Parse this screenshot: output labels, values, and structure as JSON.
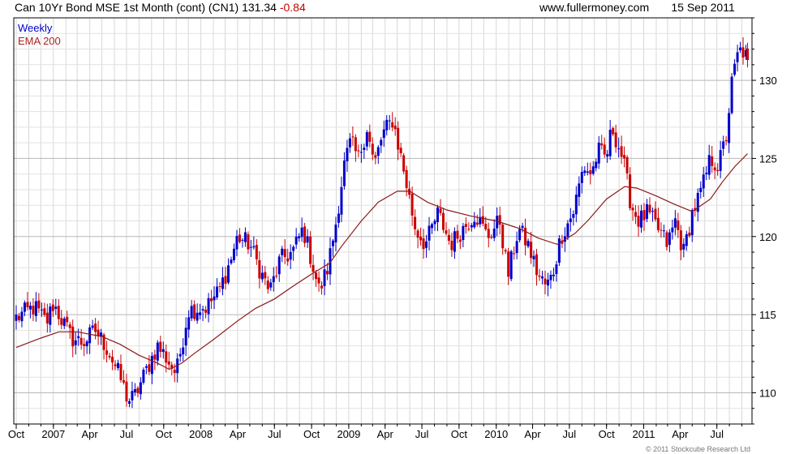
{
  "header": {
    "instrument": "Can 10Yr Bond MSE 1st Month (cont) (CN1) 131.34",
    "change": "-0.84",
    "site": "www.fullermoney.com",
    "date": "15 Sep 2011"
  },
  "legend": {
    "weekly": "Weekly",
    "ema": "EMA 200"
  },
  "copyright": "© 2011 Stockcube Research Ltd",
  "colors": {
    "up": "#0000cc",
    "down": "#cc0000",
    "ema": "#8b1a1a",
    "grid": "#d8d8d8"
  },
  "chart_data": {
    "type": "line",
    "chart_style": "candlestick",
    "frequency": "weekly",
    "y_axis_side": "right",
    "ylim": [
      108,
      134
    ],
    "yticks": [
      110,
      115,
      120,
      125,
      130
    ],
    "x_range": [
      "2006-09-25",
      "2011-09-26"
    ],
    "xticks": [
      {
        "date": "2006-10-01",
        "label": "Oct"
      },
      {
        "date": "2007-01-01",
        "label": "2007"
      },
      {
        "date": "2007-04-01",
        "label": "Apr"
      },
      {
        "date": "2007-07-01",
        "label": "Jul"
      },
      {
        "date": "2007-10-01",
        "label": "Oct"
      },
      {
        "date": "2008-01-01",
        "label": "2008"
      },
      {
        "date": "2008-04-01",
        "label": "Apr"
      },
      {
        "date": "2008-07-01",
        "label": "Jul"
      },
      {
        "date": "2008-10-01",
        "label": "Oct"
      },
      {
        "date": "2009-01-01",
        "label": "2009"
      },
      {
        "date": "2009-04-01",
        "label": "Apr"
      },
      {
        "date": "2009-07-01",
        "label": "Jul"
      },
      {
        "date": "2009-10-01",
        "label": "Oct"
      },
      {
        "date": "2010-01-01",
        "label": "2010"
      },
      {
        "date": "2010-04-01",
        "label": "Apr"
      },
      {
        "date": "2010-07-01",
        "label": "Jul"
      },
      {
        "date": "2010-10-01",
        "label": "Oct"
      },
      {
        "date": "2011-01-01",
        "label": "2011"
      },
      {
        "date": "2011-04-01",
        "label": "Apr"
      },
      {
        "date": "2011-07-01",
        "label": "Jul"
      }
    ],
    "price_path": [
      [
        "2006-10-01",
        114.8
      ],
      [
        "2006-11-15",
        115.5
      ],
      [
        "2006-12-15",
        114.5
      ],
      [
        "2007-01-01",
        115.7
      ],
      [
        "2007-02-15",
        113.5
      ],
      [
        "2007-03-15",
        113.2
      ],
      [
        "2007-04-15",
        114.0
      ],
      [
        "2007-05-15",
        112.8
      ],
      [
        "2007-06-15",
        111.0
      ],
      [
        "2007-07-05",
        109.5
      ],
      [
        "2007-07-20",
        109.7
      ],
      [
        "2007-08-15",
        111.2
      ],
      [
        "2007-09-15",
        113.0
      ],
      [
        "2007-10-01",
        112.5
      ],
      [
        "2007-11-01",
        111.2
      ],
      [
        "2007-12-01",
        115.3
      ],
      [
        "2008-01-15",
        115.5
      ],
      [
        "2008-02-15",
        116.5
      ],
      [
        "2008-03-15",
        118.5
      ],
      [
        "2008-04-01",
        120.0
      ],
      [
        "2008-05-01",
        119.5
      ],
      [
        "2008-06-01",
        117.5
      ],
      [
        "2008-06-20",
        116.5
      ],
      [
        "2008-07-15",
        118.5
      ],
      [
        "2008-08-15",
        119.0
      ],
      [
        "2008-09-10",
        120.5
      ],
      [
        "2008-10-01",
        118.5
      ],
      [
        "2008-10-20",
        116.5
      ],
      [
        "2008-11-10",
        118.0
      ],
      [
        "2008-12-01",
        121.0
      ],
      [
        "2008-12-20",
        124.5
      ],
      [
        "2009-01-05",
        126.0
      ],
      [
        "2009-01-25",
        125.0
      ],
      [
        "2009-02-15",
        127.0
      ],
      [
        "2009-03-05",
        124.5
      ],
      [
        "2009-03-25",
        126.5
      ],
      [
        "2009-04-20",
        127.5
      ],
      [
        "2009-05-15",
        124.5
      ],
      [
        "2009-06-15",
        120.5
      ],
      [
        "2009-07-10",
        119.5
      ],
      [
        "2009-08-10",
        121.5
      ],
      [
        "2009-09-10",
        119.5
      ],
      [
        "2009-10-10",
        120.5
      ],
      [
        "2009-11-10",
        121.5
      ],
      [
        "2009-12-10",
        120.0
      ],
      [
        "2010-01-10",
        121.0
      ],
      [
        "2010-01-30",
        117.5
      ],
      [
        "2010-02-25",
        120.5
      ],
      [
        "2010-03-20",
        119.5
      ],
      [
        "2010-04-15",
        117.5
      ],
      [
        "2010-05-05",
        116.8
      ],
      [
        "2010-05-20",
        117.5
      ],
      [
        "2010-06-10",
        120.0
      ],
      [
        "2010-07-10",
        121.5
      ],
      [
        "2010-08-05",
        124.5
      ],
      [
        "2010-08-25",
        124.0
      ],
      [
        "2010-09-10",
        125.5
      ],
      [
        "2010-09-30",
        125.0
      ],
      [
        "2010-10-15",
        127.0
      ],
      [
        "2010-11-10",
        125.0
      ],
      [
        "2010-12-01",
        122.0
      ],
      [
        "2010-12-20",
        121.0
      ],
      [
        "2011-01-10",
        121.5
      ],
      [
        "2011-02-05",
        120.5
      ],
      [
        "2011-03-01",
        119.5
      ],
      [
        "2011-03-20",
        121.0
      ],
      [
        "2011-04-10",
        119.0
      ],
      [
        "2011-05-01",
        121.5
      ],
      [
        "2011-05-25",
        123.0
      ],
      [
        "2011-06-15",
        125.0
      ],
      [
        "2011-07-05",
        124.5
      ],
      [
        "2011-07-25",
        126.5
      ],
      [
        "2011-08-05",
        129.5
      ],
      [
        "2011-08-20",
        131.5
      ],
      [
        "2011-09-01",
        132.0
      ],
      [
        "2011-09-15",
        131.3
      ]
    ],
    "ema_200": [
      [
        "2006-10-01",
        112.9
      ],
      [
        "2006-12-01",
        113.5
      ],
      [
        "2007-01-15",
        113.9
      ],
      [
        "2007-03-01",
        113.9
      ],
      [
        "2007-05-01",
        113.6
      ],
      [
        "2007-06-15",
        113.1
      ],
      [
        "2007-08-01",
        112.4
      ],
      [
        "2007-09-15",
        111.9
      ],
      [
        "2007-10-15",
        111.5
      ],
      [
        "2007-11-15",
        111.9
      ],
      [
        "2007-12-15",
        112.5
      ],
      [
        "2008-02-01",
        113.4
      ],
      [
        "2008-04-01",
        114.6
      ],
      [
        "2008-05-15",
        115.4
      ],
      [
        "2008-07-01",
        116.0
      ],
      [
        "2008-08-15",
        116.8
      ],
      [
        "2008-10-01",
        117.6
      ],
      [
        "2008-11-15",
        118.3
      ],
      [
        "2008-12-15",
        119.4
      ],
      [
        "2009-02-01",
        121.0
      ],
      [
        "2009-03-15",
        122.2
      ],
      [
        "2009-05-01",
        122.9
      ],
      [
        "2009-06-01",
        122.9
      ],
      [
        "2009-07-15",
        122.2
      ],
      [
        "2009-09-01",
        121.7
      ],
      [
        "2009-11-01",
        121.3
      ],
      [
        "2010-01-01",
        121.0
      ],
      [
        "2010-03-01",
        120.5
      ],
      [
        "2010-04-15",
        119.9
      ],
      [
        "2010-06-01",
        119.5
      ],
      [
        "2010-07-15",
        120.2
      ],
      [
        "2010-08-15",
        121.0
      ],
      [
        "2010-10-01",
        122.4
      ],
      [
        "2010-11-15",
        123.2
      ],
      [
        "2010-12-15",
        123.1
      ],
      [
        "2011-02-01",
        122.6
      ],
      [
        "2011-03-15",
        122.1
      ],
      [
        "2011-05-01",
        121.6
      ],
      [
        "2011-06-15",
        122.4
      ],
      [
        "2011-07-15",
        123.5
      ],
      [
        "2011-08-15",
        124.5
      ],
      [
        "2011-09-15",
        125.3
      ]
    ]
  }
}
